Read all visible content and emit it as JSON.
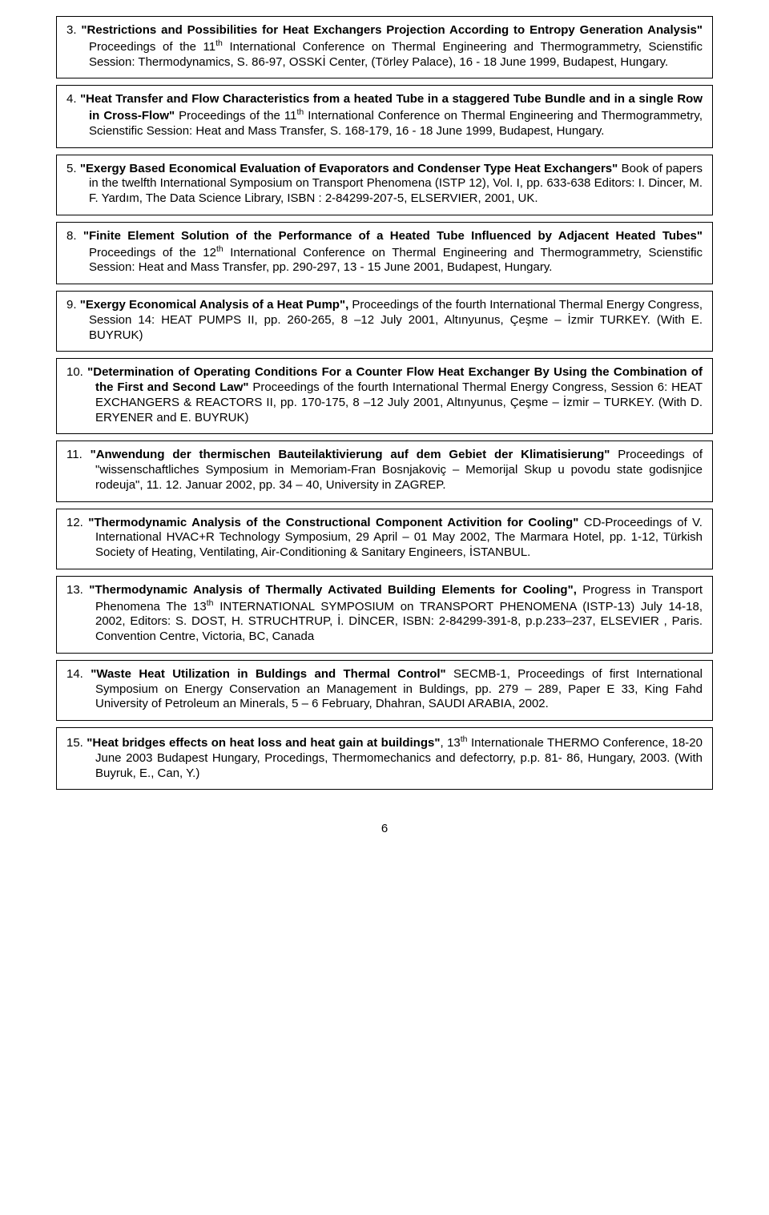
{
  "page_number": "6",
  "entries": [
    {
      "num": "3.",
      "title": "\"Restrictions and Possibilities for Heat Exchangers Projection According to Entropy Generation  Analysis\"",
      "rest": " Proceedings of the 11",
      "sup": "th",
      "rest2": " International Conference on Thermal Engineering and Thermogrammetry, Scienstific Session: Thermodynamics, S. 86-97, OSSKİ  Center, (Törley Palace), 16 - 18 June 1999,  Budapest, Hungary."
    },
    {
      "num": "4.",
      "title": "\"Heat Transfer and Flow Characteristics from a heated Tube in a staggered Tube Bundle  and in a single Row in Cross-Flow\"",
      "rest": "  Proceedings of the 11",
      "sup": "th",
      "rest2": " International Conference on  Thermal Engineering and Thermogrammetry, Scienstific Session:  Heat and Mass Transfer,  S. 168-179, 16 - 18 June 1999, Budapest, Hungary."
    },
    {
      "num": "5.",
      "title": "\"Exergy Based Economical Evaluation of Evaporators and Condenser Type Heat Exchangers\"",
      "rest": " Book of papers in the twelfth International Symposium on Transport Phenomena  (ISTP 12), Vol. I, pp. 633-638 Editors: I. Dincer, M. F. Yardım, The Data Science  Library, ISBN : 2-84299-207-5, ELSERVIER, 2001, UK.",
      "sup": "",
      "rest2": ""
    },
    {
      "num": "8.",
      "title": "\"Finite Element Solution of the Performance of a Heated Tube Influenced by Adjacent Heated Tubes\"",
      "rest": " Proceedings of the 12",
      "sup": "th",
      "rest2": " International Conference on Thermal Engineering and Thermogrammetry,  Scienstific Session:  Heat and Mass Transfer, pp. 290-297, 13 - 15 June   2001, Budapest, Hungary."
    },
    {
      "num": "9.",
      "title": "\"Exergy Economical Analysis of a Heat Pump\",",
      "rest": " Proceedings of the fourth International Thermal Energy Congress, Session 14: HEAT PUMPS II, pp. 260-265, 8 –12 July 2001, Altınyunus, Çeşme – İzmir TURKEY.  (With E. BUYRUK)",
      "sup": "",
      "rest2": ""
    },
    {
      "num": "10.",
      "title": "\"Determination of Operating Conditions  For a Counter Flow Heat Exchanger By Using  the Combination of the First and Second Law\"",
      "rest": "  Proceedings of the fourth International Thermal Energy Congress, Session 6: HEAT EXCHANGERS & REACTORS II, pp. 170-175, 8 –12 July 2001, Altınyunus, Çeşme – İzmir –  TURKEY. (With D. ERYENER and E. BUYRUK)",
      "sup": "",
      "rest2": ""
    },
    {
      "num": "11.",
      "title": "\"Anwendung der thermischen Bauteilaktivierung auf dem Gebiet der Klimatisierung\"",
      "rest": " Proceedings of \"wissenschaftliches Symposium in Memoriam-Fran Bosnjakoviç – Memorijal  Skup u povodu state godisnjice rodeuja\", 11. 12. Januar 2002, pp. 34 – 40, University in ZAGREP.",
      "sup": "",
      "rest2": ""
    },
    {
      "num": "12.",
      "title": "\"Thermodynamic Analysis of the Constructional Component Activition for Cooling\"",
      "rest": "  CD-Proceedings of V. International HVAC+R Technology Symposium, 29 April – 01 May 2002, The Marmara Hotel, pp. 1-12,  Türkish Society of Heating, Ventilating, Air-Conditioning & Sanitary Engineers, İSTANBUL.",
      "sup": "",
      "rest2": ""
    },
    {
      "num": "13.",
      "title": "\"Thermodynamic Analysis of Thermally Activated Building Elements for Cooling\",",
      "rest": " Progress in Transport Phenomena The 13",
      "sup": "th",
      "rest2": " INTERNATIONAL SYMPOSIUM on TRANSPORT PHENOMENA (ISTP-13) July 14-18, 2002,  Editors: S. DOST, H. STRUCHTRUP, İ. DİNCER, ISBN: 2-84299-391-8, p.p.233–237, ELSEVIER , Paris.   Convention Centre, Victoria, BC, Canada"
    },
    {
      "num": "14.",
      "title": "\"Waste Heat Utilization in Buldings and Thermal Control\"",
      "rest": " SECMB-1, Proceedings of first  International Symposium on Energy Conservation an Management in Buldings, pp. 279 – 289,  Paper E 33, King Fahd University of Petroleum an Minerals, 5 – 6 February,  Dhahran,  SAUDI ARABIA, 2002.",
      "sup": "",
      "rest2": ""
    },
    {
      "num": "15.",
      "title": "\"Heat bridges effects on heat loss and heat gain at buildings\"",
      "rest": ", 13",
      "sup": "th",
      "rest2": " Internationale THERMO Conference, 18-20 June 2003 Budapest Hungary, Procedings, Thermomechanics and defectorry, p.p. 81- 86,  Hungary, 2003. (With Buyruk, E., Can, Y.)"
    }
  ]
}
